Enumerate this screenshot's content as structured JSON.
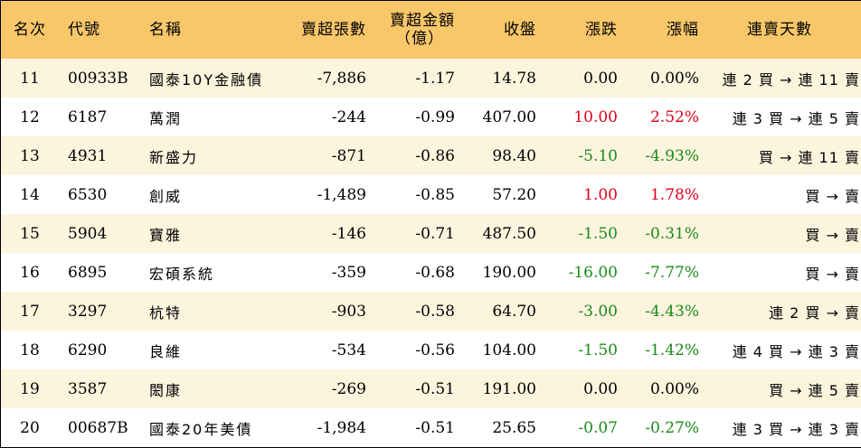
{
  "colors": {
    "header_bg": "#f8c76a",
    "row_alt_bg": "#fdf4de",
    "up": "#e0001b",
    "down": "#1a8a1a"
  },
  "header": {
    "rank": "名次",
    "code": "代號",
    "name": "名稱",
    "volume": "賣超張數",
    "amount_line1": "賣超金額",
    "amount_line2": "（億）",
    "close": "收盤",
    "change": "漲跌",
    "pct": "漲幅",
    "days": "連賣天數"
  },
  "rows": [
    {
      "rank": "11",
      "code": "00933B",
      "name": "國泰10Y金融債",
      "volume": "-7,886",
      "amount": "-1.17",
      "close": "14.78",
      "change": "0.00",
      "pct": "0.00%",
      "trend": "flat",
      "days": "連 2 買 → 連 11 賣"
    },
    {
      "rank": "12",
      "code": "6187",
      "name": "萬潤",
      "volume": "-244",
      "amount": "-0.99",
      "close": "407.00",
      "change": "10.00",
      "pct": "2.52%",
      "trend": "up",
      "days": "連 3 買 → 連 5 賣"
    },
    {
      "rank": "13",
      "code": "4931",
      "name": "新盛力",
      "volume": "-871",
      "amount": "-0.86",
      "close": "98.40",
      "change": "-5.10",
      "pct": "-4.93%",
      "trend": "down",
      "days": "買 → 連 11 賣"
    },
    {
      "rank": "14",
      "code": "6530",
      "name": "創威",
      "volume": "-1,489",
      "amount": "-0.85",
      "close": "57.20",
      "change": "1.00",
      "pct": "1.78%",
      "trend": "up",
      "days": "買 → 賣"
    },
    {
      "rank": "15",
      "code": "5904",
      "name": "寶雅",
      "volume": "-146",
      "amount": "-0.71",
      "close": "487.50",
      "change": "-1.50",
      "pct": "-0.31%",
      "trend": "down",
      "days": "買 → 賣"
    },
    {
      "rank": "16",
      "code": "6895",
      "name": "宏碩系統",
      "volume": "-359",
      "amount": "-0.68",
      "close": "190.00",
      "change": "-16.00",
      "pct": "-7.77%",
      "trend": "down",
      "days": "買 → 賣"
    },
    {
      "rank": "17",
      "code": "3297",
      "name": "杭特",
      "volume": "-903",
      "amount": "-0.58",
      "close": "64.70",
      "change": "-3.00",
      "pct": "-4.43%",
      "trend": "down",
      "days": "連 2 買 → 賣"
    },
    {
      "rank": "18",
      "code": "6290",
      "name": "良維",
      "volume": "-534",
      "amount": "-0.56",
      "close": "104.00",
      "change": "-1.50",
      "pct": "-1.42%",
      "trend": "down",
      "days": "連 4 買 → 連 3 賣"
    },
    {
      "rank": "19",
      "code": "3587",
      "name": "閎康",
      "volume": "-269",
      "amount": "-0.51",
      "close": "191.00",
      "change": "0.00",
      "pct": "0.00%",
      "trend": "flat",
      "days": "買 → 連 5 賣"
    },
    {
      "rank": "20",
      "code": "00687B",
      "name": "國泰20年美債",
      "volume": "-1,984",
      "amount": "-0.51",
      "close": "25.65",
      "change": "-0.07",
      "pct": "-0.27%",
      "trend": "down",
      "days": "連 3 買 → 連 3 賣"
    }
  ]
}
